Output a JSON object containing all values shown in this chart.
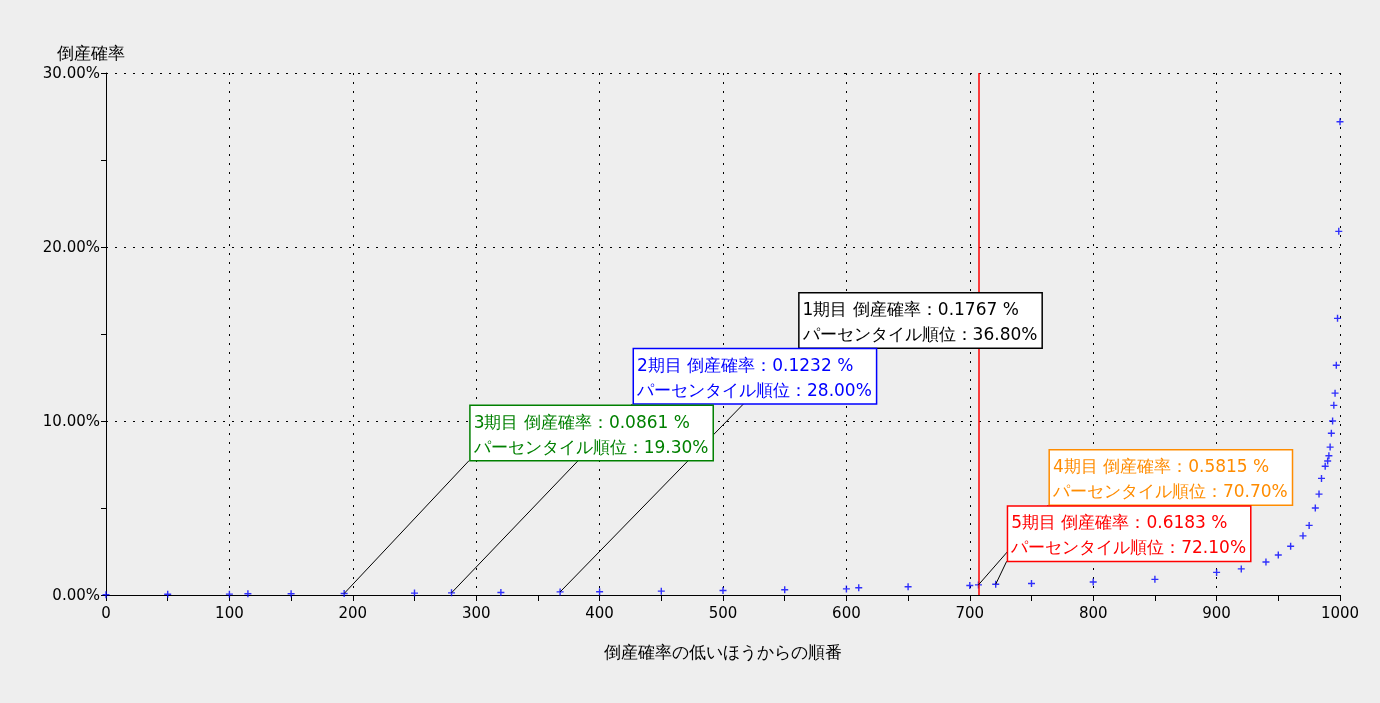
{
  "chart_data": {
    "type": "scatter",
    "ylabel": "倒産確率",
    "xlabel": "倒産確率の低いほうからの順番",
    "x": [
      0,
      50,
      100,
      115,
      150,
      193,
      250,
      280,
      320,
      368,
      400,
      450,
      500,
      550,
      600,
      610,
      650,
      700,
      707,
      721,
      750,
      800,
      850,
      900,
      920,
      940,
      950,
      960,
      970,
      975,
      980,
      983,
      985,
      988,
      990,
      991,
      992,
      993,
      994,
      995,
      996,
      997,
      998,
      999,
      1000
    ],
    "series": [
      {
        "color": "#0000ff",
        "values": [
          0.02,
          0.04,
          0.05,
          0.07,
          0.07,
          0.086,
          0.11,
          0.123,
          0.14,
          0.177,
          0.19,
          0.22,
          0.26,
          0.3,
          0.35,
          0.42,
          0.47,
          0.55,
          0.58,
          0.62,
          0.66,
          0.75,
          0.9,
          1.3,
          1.5,
          1.9,
          2.3,
          2.8,
          3.4,
          4.0,
          5.0,
          5.8,
          6.7,
          7.4,
          7.7,
          8.0,
          8.5,
          9.3,
          10.0,
          10.9,
          11.6,
          13.2,
          15.9,
          20.9,
          27.2
        ]
      }
    ],
    "marker": "cross",
    "xlim": [
      0,
      1000
    ],
    "xticks": [
      0,
      {
        "value": 50,
        "label": null
      },
      100,
      {
        "value": 150,
        "label": null
      },
      200,
      {
        "value": 250,
        "label": null
      },
      300,
      {
        "value": 350,
        "label": null
      },
      400,
      {
        "value": 450,
        "label": null
      },
      500,
      {
        "value": 550,
        "label": null
      },
      600,
      {
        "value": 650,
        "label": null
      },
      700,
      {
        "value": 750,
        "label": null
      },
      800,
      {
        "value": 850,
        "label": null
      },
      900,
      {
        "value": 950,
        "label": null
      },
      1000
    ],
    "ylim": [
      0,
      30
    ],
    "yticks": [
      {
        "value": 0,
        "label": "0.00%"
      },
      {
        "value": 5,
        "label": null
      },
      {
        "value": 10,
        "label": "10.00%"
      },
      {
        "value": 15,
        "label": null
      },
      {
        "value": 20,
        "label": "20.00%"
      },
      {
        "value": 25,
        "label": null
      },
      {
        "value": 30,
        "label": "30.00%"
      }
    ],
    "grid": true,
    "ref_lines": [
      {
        "axis": "x",
        "value": 707,
        "color": "#ff0000",
        "line_style": "solid"
      }
    ],
    "annotations": [
      {
        "text": "1期目 倒産確率：0.1767 %\nパーセンタイル順位：36.80%",
        "x": 368,
        "y": 0.1767
      },
      {
        "text": "2期目 倒産確率：0.1232 %\nパーセンタイル順位：28.00%",
        "x": 280,
        "y": 0.1232
      },
      {
        "text": "3期目 倒産確率：0.0861 %\nパーセンタイル順位：19.30%",
        "x": 193,
        "y": 0.0861
      },
      {
        "text": "4期目 倒産確率：0.5815 %\nパーセンタイル順位：70.70%",
        "x": 707,
        "y": 0.5815
      },
      {
        "text": "5期目 倒産確率：0.6183 %\nパーセンタイル順位：72.10%",
        "x": 721,
        "y": 0.6183
      }
    ]
  }
}
